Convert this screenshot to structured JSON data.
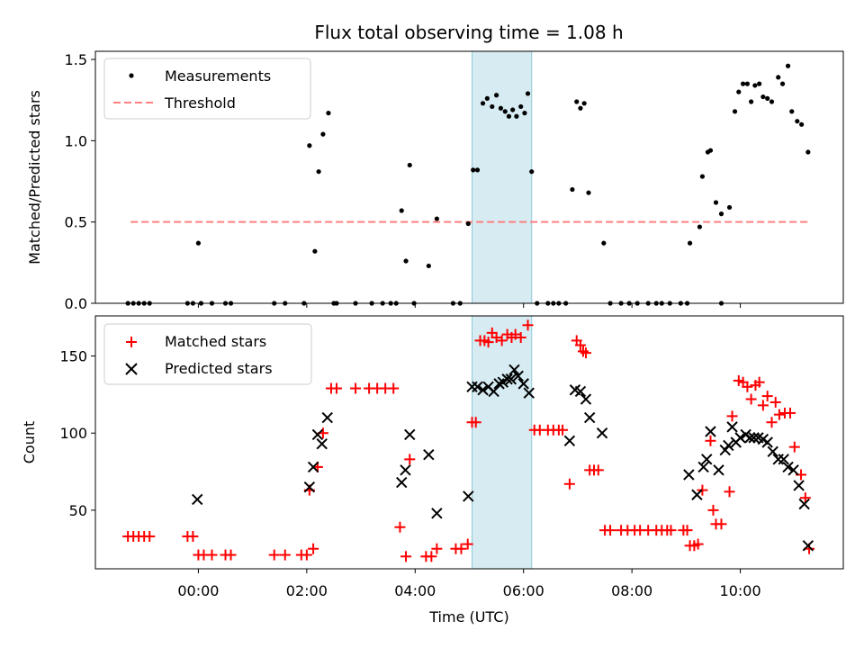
{
  "chart_data": {
    "type": "scatter",
    "title": "Flux total observing time = 1.08 h",
    "xlabel": "Time (UTC)",
    "x_unit": "hours UTC",
    "xlim": [
      -1.9,
      11.9
    ],
    "xticks": [
      0,
      2,
      4,
      6,
      8,
      10
    ],
    "xtick_labels": [
      "00:00",
      "02:00",
      "04:00",
      "06:00",
      "08:00",
      "10:00"
    ],
    "highlight_span": {
      "start": 5.05,
      "end": 6.15,
      "color": "#add8e6"
    },
    "top": {
      "ylabel": "Matched/Predicted stars",
      "ylim": [
        0,
        1.55
      ],
      "yticks": [
        0.0,
        0.5,
        1.0,
        1.5
      ],
      "ytick_labels": [
        "0.0",
        "0.5",
        "1.0",
        "1.5"
      ],
      "legend": {
        "position": "upper-left",
        "measurements_label": "Measurements",
        "threshold_label": "Threshold"
      },
      "threshold": {
        "value": 0.5,
        "x_start": -1.25,
        "x_end": 11.25,
        "color": "#ff7f7f"
      },
      "measurements": [
        [
          -1.3,
          0.0
        ],
        [
          -1.2,
          0.0
        ],
        [
          -1.1,
          0.0
        ],
        [
          -1.0,
          0.0
        ],
        [
          -0.9,
          0.0
        ],
        [
          -0.2,
          0.0
        ],
        [
          -0.1,
          0.0
        ],
        [
          0.0,
          0.37
        ],
        [
          0.05,
          0.0
        ],
        [
          0.25,
          0.0
        ],
        [
          0.5,
          0.0
        ],
        [
          0.6,
          0.0
        ],
        [
          1.4,
          0.0
        ],
        [
          1.6,
          0.0
        ],
        [
          1.95,
          0.0
        ],
        [
          2.05,
          0.97
        ],
        [
          2.15,
          0.32
        ],
        [
          2.22,
          0.81
        ],
        [
          2.3,
          1.04
        ],
        [
          2.4,
          1.17
        ],
        [
          2.5,
          0.0
        ],
        [
          2.55,
          0.0
        ],
        [
          2.9,
          0.0
        ],
        [
          3.2,
          0.0
        ],
        [
          3.4,
          0.0
        ],
        [
          3.55,
          0.0
        ],
        [
          3.65,
          0.0
        ],
        [
          3.75,
          0.57
        ],
        [
          3.83,
          0.26
        ],
        [
          3.9,
          0.85
        ],
        [
          3.98,
          0.0
        ],
        [
          4.25,
          0.23
        ],
        [
          4.4,
          0.52
        ],
        [
          4.7,
          0.0
        ],
        [
          4.83,
          0.0
        ],
        [
          4.98,
          0.49
        ],
        [
          5.07,
          0.82
        ],
        [
          5.15,
          0.82
        ],
        [
          5.25,
          1.23
        ],
        [
          5.33,
          1.26
        ],
        [
          5.42,
          1.21
        ],
        [
          5.5,
          1.28
        ],
        [
          5.58,
          1.2
        ],
        [
          5.66,
          1.18
        ],
        [
          5.73,
          1.15
        ],
        [
          5.8,
          1.19
        ],
        [
          5.87,
          1.15
        ],
        [
          5.95,
          1.21
        ],
        [
          6.02,
          1.17
        ],
        [
          6.08,
          1.29
        ],
        [
          6.15,
          0.81
        ],
        [
          6.25,
          0.0
        ],
        [
          6.45,
          0.0
        ],
        [
          6.55,
          0.0
        ],
        [
          6.65,
          0.0
        ],
        [
          6.78,
          0.0
        ],
        [
          6.9,
          0.7
        ],
        [
          6.98,
          1.24
        ],
        [
          7.05,
          1.2
        ],
        [
          7.12,
          1.23
        ],
        [
          7.2,
          0.68
        ],
        [
          7.48,
          0.37
        ],
        [
          7.6,
          0.0
        ],
        [
          7.8,
          0.0
        ],
        [
          7.95,
          0.0
        ],
        [
          8.1,
          0.0
        ],
        [
          8.3,
          0.0
        ],
        [
          8.45,
          0.0
        ],
        [
          8.55,
          0.0
        ],
        [
          8.7,
          0.0
        ],
        [
          8.9,
          0.0
        ],
        [
          9.02,
          0.0
        ],
        [
          9.07,
          0.37
        ],
        [
          9.25,
          0.47
        ],
        [
          9.3,
          0.78
        ],
        [
          9.4,
          0.93
        ],
        [
          9.45,
          0.94
        ],
        [
          9.55,
          0.62
        ],
        [
          9.65,
          0.55
        ],
        [
          9.8,
          0.59
        ],
        [
          9.9,
          1.18
        ],
        [
          9.97,
          1.3
        ],
        [
          10.05,
          1.35
        ],
        [
          10.13,
          1.35
        ],
        [
          10.2,
          1.24
        ],
        [
          10.27,
          1.34
        ],
        [
          10.35,
          1.35
        ],
        [
          10.42,
          1.27
        ],
        [
          10.5,
          1.26
        ],
        [
          10.58,
          1.24
        ],
        [
          10.7,
          1.39
        ],
        [
          10.78,
          1.35
        ],
        [
          10.88,
          1.46
        ],
        [
          10.95,
          1.18
        ],
        [
          11.05,
          1.12
        ],
        [
          11.13,
          1.1
        ],
        [
          11.25,
          0.93
        ],
        [
          9.65,
          0.0
        ]
      ]
    },
    "bottom": {
      "ylabel": "Count",
      "ylim": [
        12,
        176
      ],
      "yticks": [
        50,
        100,
        150
      ],
      "ytick_labels": [
        "50",
        "100",
        "150"
      ],
      "legend": {
        "position": "upper-left",
        "matched_label": "Matched stars",
        "predicted_label": "Predicted stars"
      },
      "matched": [
        [
          -1.3,
          33
        ],
        [
          -1.2,
          33
        ],
        [
          -1.1,
          33
        ],
        [
          -1.0,
          33
        ],
        [
          -0.9,
          33
        ],
        [
          -0.2,
          33
        ],
        [
          -0.1,
          33
        ],
        [
          0.0,
          21
        ],
        [
          0.1,
          21
        ],
        [
          0.25,
          21
        ],
        [
          0.5,
          21
        ],
        [
          0.6,
          21
        ],
        [
          1.4,
          21
        ],
        [
          1.6,
          21
        ],
        [
          1.9,
          21
        ],
        [
          2.0,
          21
        ],
        [
          2.05,
          63
        ],
        [
          2.12,
          25
        ],
        [
          2.2,
          78
        ],
        [
          2.3,
          100
        ],
        [
          2.45,
          129
        ],
        [
          2.55,
          129
        ],
        [
          2.9,
          129
        ],
        [
          3.15,
          129
        ],
        [
          3.3,
          129
        ],
        [
          3.45,
          129
        ],
        [
          3.6,
          129
        ],
        [
          3.72,
          39
        ],
        [
          3.83,
          20
        ],
        [
          3.9,
          83
        ],
        [
          4.2,
          20
        ],
        [
          4.3,
          20
        ],
        [
          4.4,
          25
        ],
        [
          4.75,
          25
        ],
        [
          4.85,
          25
        ],
        [
          4.97,
          28
        ],
        [
          5.05,
          107
        ],
        [
          5.12,
          107
        ],
        [
          5.2,
          160
        ],
        [
          5.28,
          160
        ],
        [
          5.35,
          159
        ],
        [
          5.42,
          165
        ],
        [
          5.5,
          162
        ],
        [
          5.6,
          160
        ],
        [
          5.7,
          164
        ],
        [
          5.78,
          162
        ],
        [
          5.85,
          164
        ],
        [
          5.95,
          162
        ],
        [
          6.08,
          170
        ],
        [
          6.2,
          102
        ],
        [
          6.3,
          102
        ],
        [
          6.45,
          102
        ],
        [
          6.55,
          102
        ],
        [
          6.65,
          102
        ],
        [
          6.72,
          102
        ],
        [
          6.85,
          67
        ],
        [
          6.98,
          160
        ],
        [
          7.05,
          157
        ],
        [
          7.1,
          153
        ],
        [
          7.15,
          152
        ],
        [
          7.22,
          76
        ],
        [
          7.3,
          76
        ],
        [
          7.38,
          76
        ],
        [
          7.5,
          37
        ],
        [
          7.6,
          37
        ],
        [
          7.8,
          37
        ],
        [
          7.92,
          37
        ],
        [
          8.05,
          37
        ],
        [
          8.15,
          37
        ],
        [
          8.3,
          37
        ],
        [
          8.45,
          37
        ],
        [
          8.55,
          37
        ],
        [
          8.65,
          37
        ],
        [
          8.72,
          37
        ],
        [
          8.95,
          37
        ],
        [
          9.02,
          37
        ],
        [
          9.07,
          27
        ],
        [
          9.15,
          27
        ],
        [
          9.22,
          28
        ],
        [
          9.3,
          63
        ],
        [
          9.45,
          95
        ],
        [
          9.5,
          50
        ],
        [
          9.55,
          41
        ],
        [
          9.65,
          41
        ],
        [
          9.8,
          62
        ],
        [
          9.85,
          111
        ],
        [
          9.97,
          134
        ],
        [
          10.05,
          133
        ],
        [
          10.13,
          130
        ],
        [
          10.2,
          122
        ],
        [
          10.28,
          131
        ],
        [
          10.35,
          133
        ],
        [
          10.42,
          118
        ],
        [
          10.5,
          124
        ],
        [
          10.58,
          107
        ],
        [
          10.65,
          120
        ],
        [
          10.72,
          112
        ],
        [
          10.82,
          113
        ],
        [
          10.92,
          113
        ],
        [
          11.0,
          91
        ],
        [
          11.12,
          73
        ],
        [
          11.2,
          58
        ],
        [
          11.27,
          25
        ]
      ],
      "predicted": [
        [
          -0.02,
          57
        ],
        [
          2.05,
          65
        ],
        [
          2.12,
          78
        ],
        [
          2.2,
          99
        ],
        [
          2.28,
          93
        ],
        [
          2.38,
          110
        ],
        [
          3.75,
          68
        ],
        [
          3.82,
          76
        ],
        [
          3.9,
          99
        ],
        [
          4.25,
          86
        ],
        [
          4.4,
          48
        ],
        [
          4.98,
          59
        ],
        [
          5.05,
          130
        ],
        [
          5.15,
          130
        ],
        [
          5.25,
          128
        ],
        [
          5.35,
          130
        ],
        [
          5.45,
          127
        ],
        [
          5.55,
          132
        ],
        [
          5.62,
          133
        ],
        [
          5.7,
          135
        ],
        [
          5.77,
          135
        ],
        [
          5.83,
          141
        ],
        [
          5.9,
          137
        ],
        [
          6.0,
          132
        ],
        [
          6.1,
          126
        ],
        [
          6.85,
          95
        ],
        [
          6.95,
          128
        ],
        [
          7.05,
          127
        ],
        [
          7.15,
          122
        ],
        [
          7.22,
          110
        ],
        [
          7.45,
          100
        ],
        [
          9.05,
          73
        ],
        [
          9.2,
          60
        ],
        [
          9.32,
          78
        ],
        [
          9.38,
          83
        ],
        [
          9.45,
          101
        ],
        [
          9.6,
          76
        ],
        [
          9.72,
          89
        ],
        [
          9.78,
          92
        ],
        [
          9.85,
          104
        ],
        [
          9.92,
          94
        ],
        [
          10.0,
          97
        ],
        [
          10.1,
          99
        ],
        [
          10.18,
          97
        ],
        [
          10.25,
          97
        ],
        [
          10.33,
          97
        ],
        [
          10.42,
          96
        ],
        [
          10.5,
          94
        ],
        [
          10.6,
          88
        ],
        [
          10.7,
          83
        ],
        [
          10.8,
          83
        ],
        [
          10.88,
          78
        ],
        [
          10.98,
          76
        ],
        [
          11.08,
          66
        ],
        [
          11.18,
          54
        ],
        [
          11.25,
          27
        ]
      ]
    }
  }
}
